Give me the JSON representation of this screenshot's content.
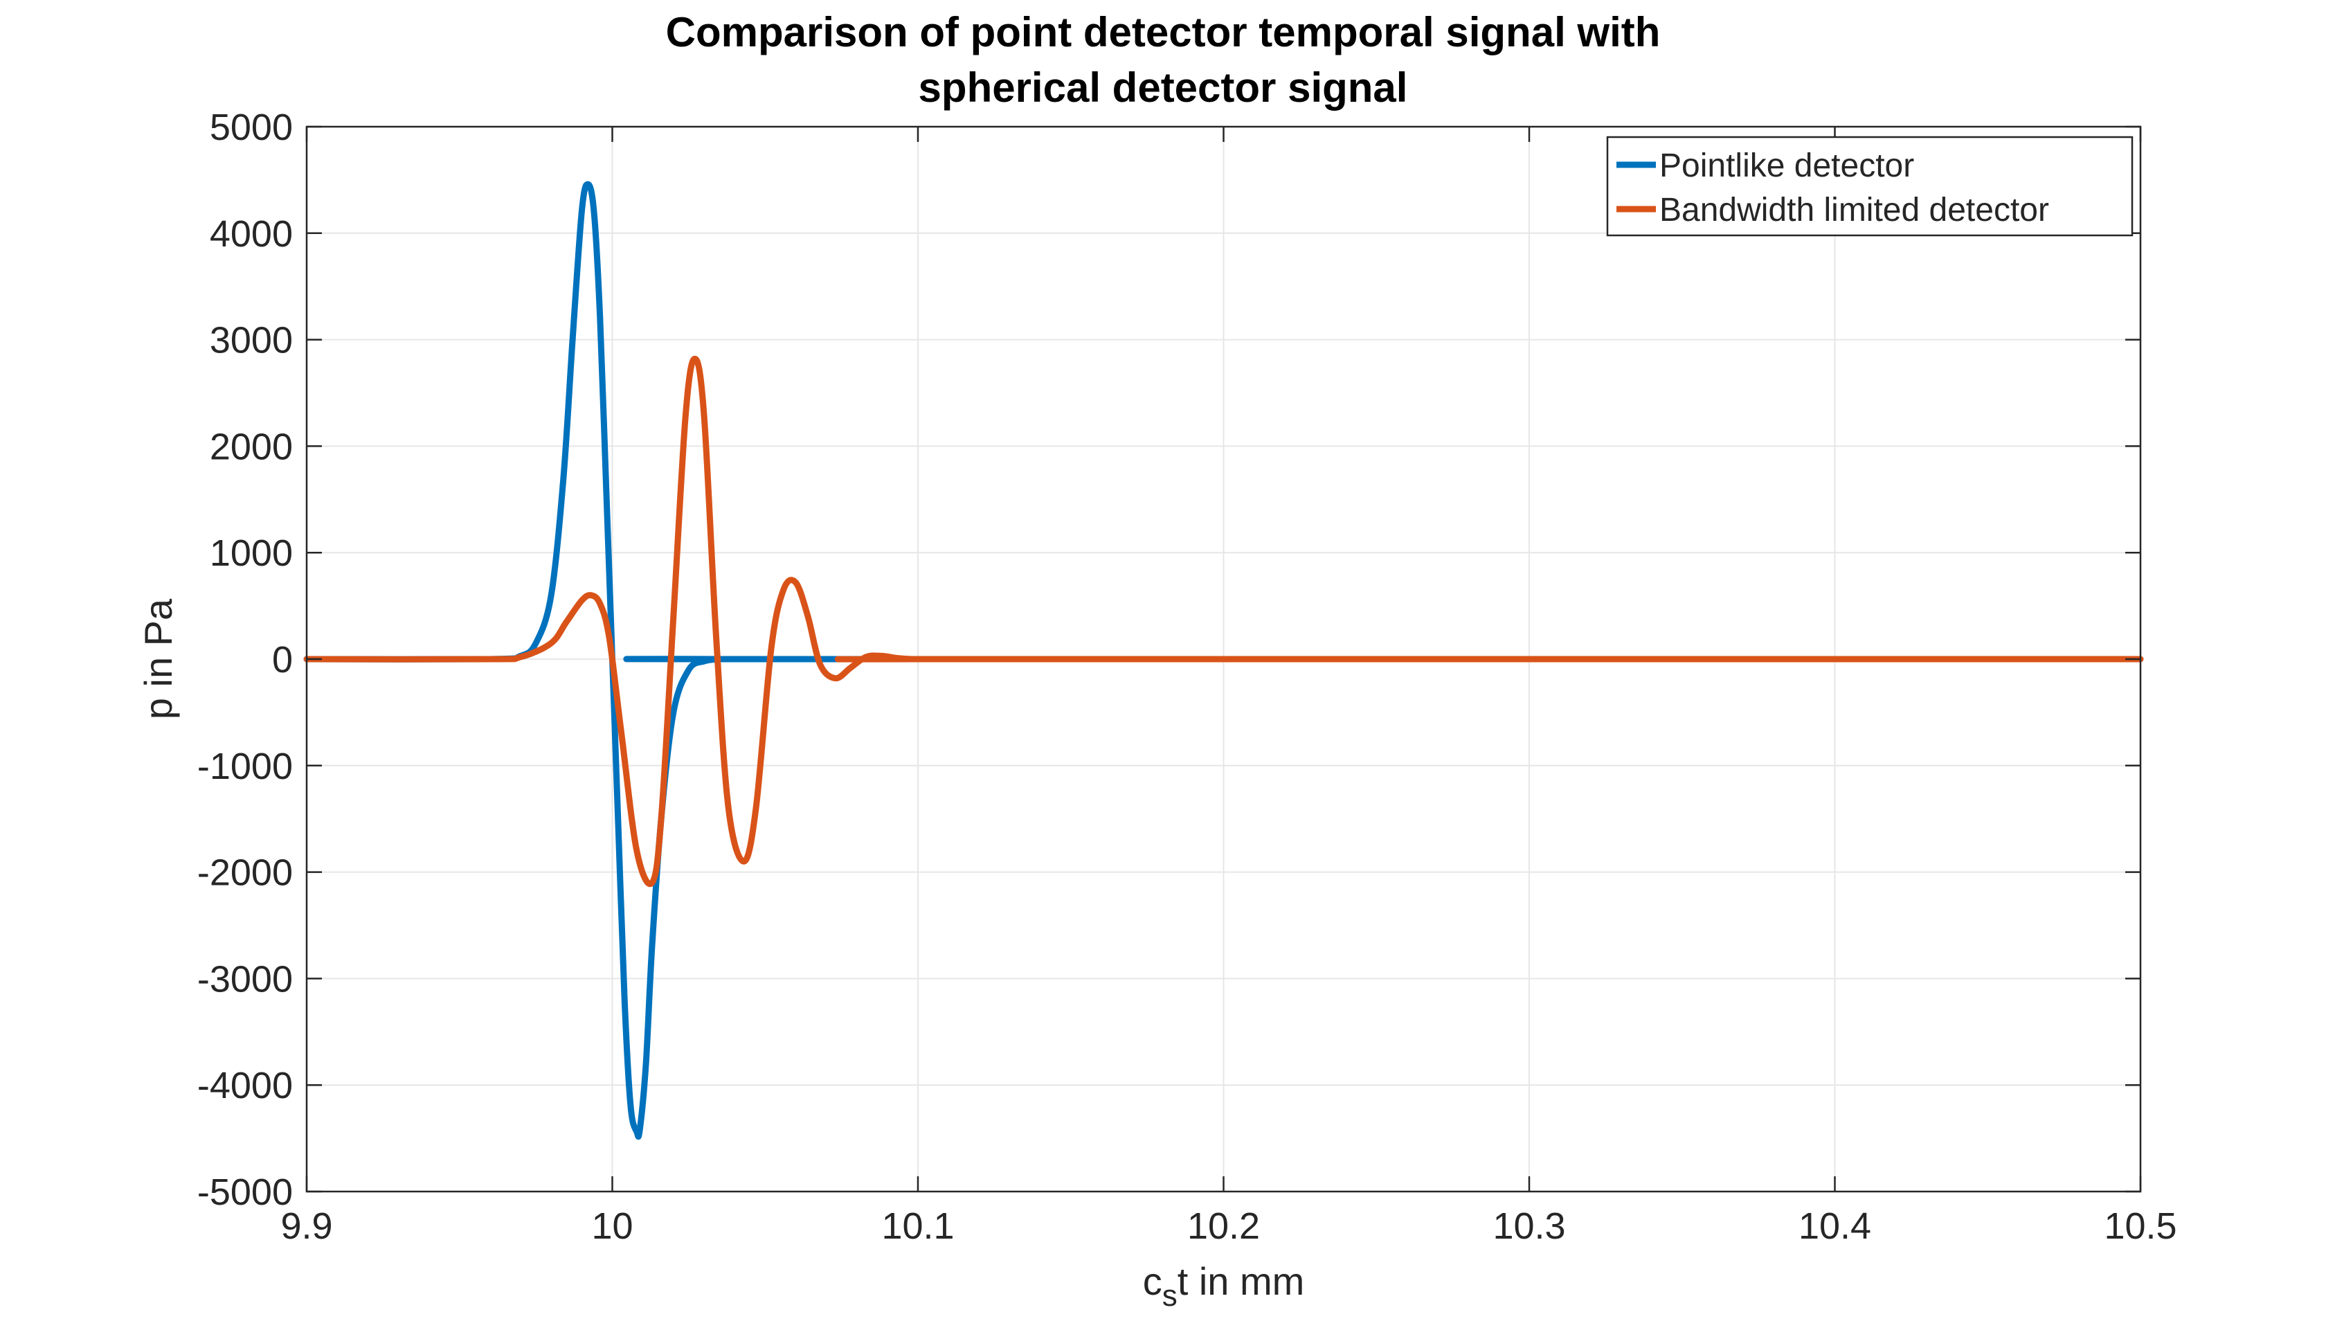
{
  "chart_data": {
    "type": "line",
    "title": [
      "Comparison of point detector temporal signal with",
      "spherical detector signal"
    ],
    "xlabel": {
      "main": "c",
      "sub": "s",
      "rest": "t in mm"
    },
    "ylabel": "p in Pa",
    "xlim": [
      9.9,
      10.5
    ],
    "ylim": [
      -5000,
      5000
    ],
    "xticks": [
      9.9,
      10,
      10.1,
      10.2,
      10.3,
      10.4,
      10.5
    ],
    "xtick_labels": [
      "9.9",
      "10",
      "10.1",
      "10.2",
      "10.3",
      "10.4",
      "10.5"
    ],
    "yticks": [
      -5000,
      -4000,
      -3000,
      -2000,
      -1000,
      0,
      1000,
      2000,
      3000,
      4000,
      5000
    ],
    "ytick_labels": [
      "-5000",
      "-4000",
      "-3000",
      "-2000",
      "-1000",
      "0",
      "1000",
      "2000",
      "3000",
      "4000",
      "5000"
    ],
    "grid": true,
    "legend_position": "top-right",
    "series": [
      {
        "name": "Pointlike detector",
        "color": "#0072BD",
        "x": [
          9.9,
          9.96,
          9.97,
          9.975,
          9.98,
          9.984,
          9.987,
          9.99,
          9.992,
          9.994,
          9.996,
          9.998,
          10.0,
          10.002,
          10.004,
          10.006,
          10.008,
          10.009,
          10.011,
          10.013,
          10.016,
          10.02,
          10.025,
          10.03,
          10.035,
          10.04,
          10.5
        ],
        "y": [
          0,
          0,
          30,
          150,
          600,
          1700,
          3000,
          4200,
          4460,
          4200,
          3200,
          1600,
          0,
          -1600,
          -3200,
          -4200,
          -4440,
          -4420,
          -3800,
          -2700,
          -1500,
          -500,
          -100,
          -20,
          0,
          0,
          0
        ]
      },
      {
        "name": "Bandwidth limited detector",
        "color": "#D95319",
        "x": [
          9.9,
          9.96,
          9.97,
          9.98,
          9.985,
          9.99,
          9.993,
          9.996,
          9.999,
          10.003,
          10.008,
          10.013,
          10.016,
          10.02,
          10.024,
          10.027,
          10.03,
          10.034,
          10.038,
          10.043,
          10.047,
          10.052,
          10.056,
          10.06,
          10.064,
          10.068,
          10.073,
          10.078,
          10.083,
          10.088,
          10.093,
          10.098,
          10.105,
          10.5
        ],
        "y": [
          0,
          0,
          20,
          150,
          350,
          550,
          600,
          520,
          200,
          -700,
          -1800,
          -2100,
          -1500,
          400,
          2300,
          2820,
          2300,
          200,
          -1400,
          -1900,
          -1400,
          100,
          650,
          720,
          400,
          -50,
          -180,
          -80,
          20,
          30,
          10,
          0,
          0,
          0
        ]
      }
    ]
  }
}
